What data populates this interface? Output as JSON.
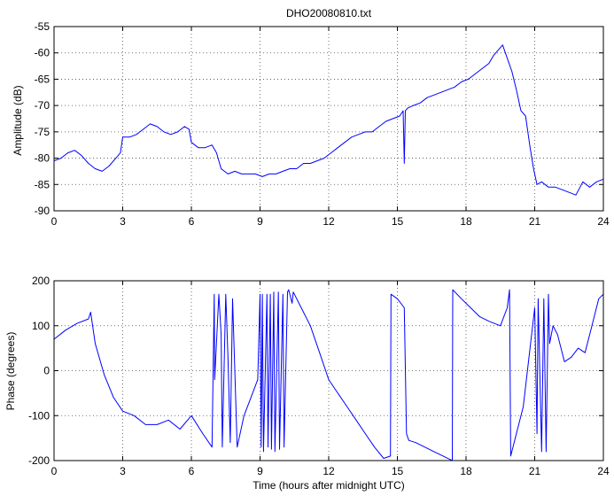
{
  "figure": {
    "background": "#ffffff",
    "line_color": "#0000ff"
  },
  "chart_data": [
    {
      "type": "line",
      "title": "DHO20080810.txt",
      "xlabel": "",
      "ylabel": "Amplitude (dB)",
      "xlim": [
        0,
        24
      ],
      "ylim": [
        -90,
        -55
      ],
      "xticks": [
        0,
        3,
        6,
        9,
        12,
        15,
        18,
        21,
        24
      ],
      "yticks": [
        -90,
        -85,
        -80,
        -75,
        -70,
        -65,
        -60,
        -55
      ],
      "grid": true,
      "series": [
        {
          "x": [
            0,
            0.3,
            0.6,
            0.9,
            1.2,
            1.5,
            1.8,
            2.1,
            2.4,
            2.7,
            2.9,
            3.0,
            3.3,
            3.6,
            3.9,
            4.2,
            4.5,
            4.8,
            5.1,
            5.4,
            5.7,
            5.9,
            6.0,
            6.3,
            6.6,
            6.9,
            7.1,
            7.3,
            7.6,
            7.9,
            8.2,
            8.5,
            8.8,
            9.1,
            9.4,
            9.7,
            10.0,
            10.3,
            10.6,
            10.9,
            11.2,
            11.5,
            11.8,
            12.1,
            12.4,
            12.7,
            13.0,
            13.3,
            13.6,
            13.9,
            14.2,
            14.5,
            14.8,
            15.1,
            15.25,
            15.3,
            15.35,
            15.45,
            15.7,
            16.0,
            16.3,
            16.6,
            16.9,
            17.2,
            17.5,
            17.8,
            18.1,
            18.4,
            18.7,
            19.0,
            19.2,
            19.4,
            19.6,
            19.8,
            20.0,
            20.2,
            20.4,
            20.6,
            20.8,
            20.95,
            21.1,
            21.3,
            21.6,
            21.9,
            22.2,
            22.5,
            22.8,
            23.1,
            23.4,
            23.7,
            24.0
          ],
          "values": [
            -80.5,
            -80,
            -79,
            -78.5,
            -79.5,
            -81,
            -82,
            -82.5,
            -81.5,
            -80,
            -79,
            -76,
            -76,
            -75.5,
            -74.5,
            -73.5,
            -74,
            -75,
            -75.5,
            -75,
            -74,
            -74.5,
            -77,
            -78,
            -78,
            -77.5,
            -79,
            -82,
            -83,
            -82.5,
            -83,
            -83,
            -83,
            -83.5,
            -83,
            -83,
            -82.5,
            -82,
            -82,
            -81,
            -81,
            -80.5,
            -80,
            -79,
            -78,
            -77,
            -76,
            -75.5,
            -75,
            -75,
            -74,
            -73,
            -72.5,
            -72,
            -71,
            -81,
            -71,
            -70.5,
            -70,
            -69.5,
            -68.5,
            -68,
            -67.5,
            -67,
            -66.5,
            -65.5,
            -65,
            -64,
            -63,
            -62,
            -60.5,
            -59.5,
            -58.5,
            -61,
            -63.5,
            -67,
            -71,
            -72,
            -78,
            -82,
            -85,
            -84.5,
            -85.5,
            -85.5,
            -86,
            -86.5,
            -87,
            -84.5,
            -85.5,
            -84.5,
            -84
          ]
        }
      ]
    },
    {
      "type": "line",
      "title": "",
      "xlabel": "Time (hours after midnight UTC)",
      "ylabel": "Phase (degrees)",
      "xlim": [
        0,
        24
      ],
      "ylim": [
        -200,
        200
      ],
      "xticks": [
        0,
        3,
        6,
        9,
        12,
        15,
        18,
        21,
        24
      ],
      "yticks": [
        -200,
        -100,
        0,
        100,
        200
      ],
      "grid": true,
      "series": [
        {
          "x": [
            0,
            0.5,
            1.0,
            1.5,
            1.6,
            1.8,
            2.2,
            2.6,
            3.0,
            3.5,
            4.0,
            4.5,
            5.0,
            5.5,
            6.0,
            6.5,
            6.9,
            7.0,
            7.02,
            7.2,
            7.3,
            7.35,
            7.5,
            7.6,
            7.7,
            7.8,
            8.0,
            8.3,
            8.6,
            8.9,
            9.0,
            9.05,
            9.1,
            9.15,
            9.3,
            9.35,
            9.45,
            9.5,
            9.6,
            9.65,
            9.8,
            9.85,
            10.0,
            10.05,
            10.2,
            10.25,
            10.4,
            10.45,
            10.5,
            10.8,
            11.2,
            11.6,
            12.0,
            12.4,
            12.8,
            13.2,
            13.6,
            14.0,
            14.4,
            14.7,
            14.72,
            15.0,
            15.3,
            15.4,
            15.5,
            15.8,
            16.2,
            16.6,
            17.0,
            17.4,
            17.42,
            17.8,
            18.2,
            18.6,
            19.0,
            19.5,
            19.8,
            19.9,
            19.95,
            20.5,
            21.0,
            21.1,
            21.15,
            21.3,
            21.4,
            21.5,
            21.6,
            21.65,
            21.8,
            22.0,
            22.3,
            22.6,
            22.9,
            23.2,
            23.5,
            23.8,
            24.0
          ],
          "values": [
            70,
            90,
            105,
            115,
            130,
            60,
            -10,
            -60,
            -90,
            -100,
            -120,
            -120,
            -110,
            -130,
            -100,
            -140,
            -170,
            170,
            -20,
            170,
            80,
            -170,
            170,
            30,
            -160,
            160,
            -170,
            -100,
            -60,
            -20,
            170,
            -170,
            170,
            -180,
            170,
            -170,
            170,
            -175,
            175,
            -180,
            175,
            -175,
            170,
            -170,
            175,
            180,
            150,
            175,
            170,
            140,
            100,
            40,
            -20,
            -50,
            -80,
            -110,
            -140,
            -170,
            -195,
            -190,
            170,
            160,
            140,
            -140,
            -155,
            -160,
            -170,
            -180,
            -190,
            -200,
            180,
            160,
            140,
            120,
            110,
            100,
            140,
            180,
            -190,
            -80,
            140,
            -140,
            160,
            -180,
            160,
            -180,
            170,
            60,
            100,
            80,
            20,
            30,
            50,
            40,
            100,
            160,
            170
          ]
        }
      ]
    }
  ]
}
